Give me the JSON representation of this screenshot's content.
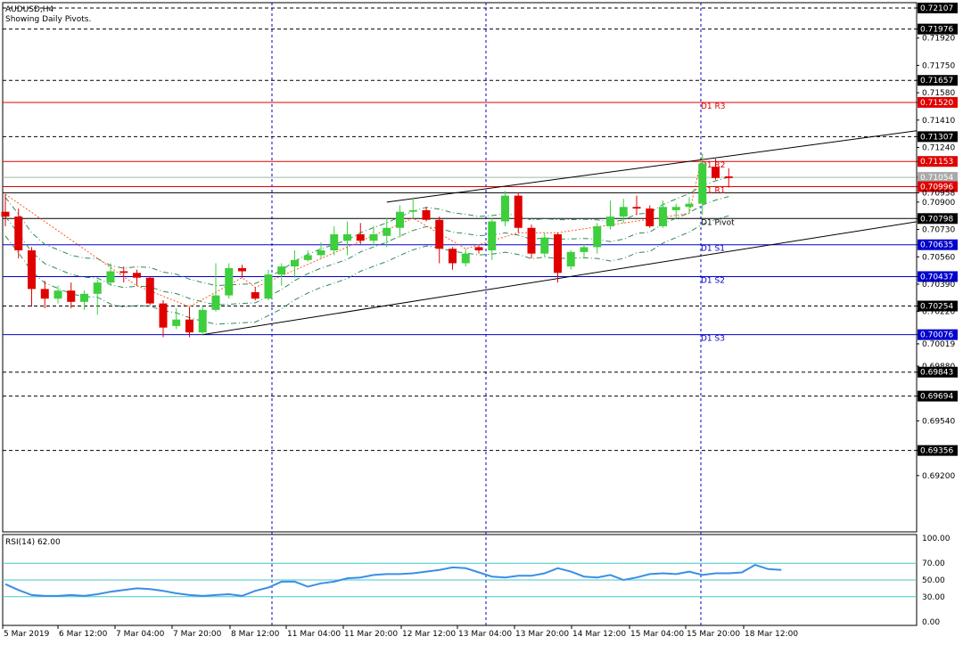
{
  "chart_data": {
    "type": "candlestick",
    "symbol_title": "AUDUSD,H4",
    "subtitle": "Showing Daily Pivots.",
    "price_range": [
      0.6885,
      0.7214
    ],
    "price_ticks": [
      "0.72107",
      "0.71976",
      "0.71920",
      "0.71750",
      "0.71657",
      "0.71580",
      "0.71520",
      "0.71410",
      "0.71307",
      "0.71240",
      "0.71153",
      "0.71054",
      "0.70996",
      "0.70958",
      "0.70900",
      "0.70798",
      "0.70730",
      "0.70635",
      "0.70560",
      "0.70437",
      "0.70390",
      "0.70254",
      "0.70220",
      "0.70076",
      "0.70019",
      "0.69880",
      "0.69843",
      "0.69694",
      "0.69540",
      "0.69356",
      "0.69200"
    ],
    "hlines": [
      {
        "price": 0.72107,
        "style": "dotted",
        "color": "#000000"
      },
      {
        "price": 0.71976,
        "style": "dotted",
        "color": "#000000"
      },
      {
        "price": 0.71657,
        "style": "dotted",
        "color": "#000000"
      },
      {
        "price": 0.71307,
        "style": "dotted",
        "color": "#000000"
      },
      {
        "price": 0.70254,
        "style": "dotted",
        "color": "#000000"
      },
      {
        "price": 0.69843,
        "style": "dotted",
        "color": "#000000"
      },
      {
        "price": 0.69694,
        "style": "dotted",
        "color": "#000000"
      },
      {
        "price": 0.69356,
        "style": "dotted",
        "color": "#000000"
      },
      {
        "price": 0.71054,
        "style": "solid",
        "color": "#9fb8a0"
      },
      {
        "price": 0.70958,
        "style": "solid",
        "color": "#000000"
      }
    ],
    "pivots": [
      {
        "name": "D1 R3",
        "price": 0.7152,
        "color": "#e00000"
      },
      {
        "name": "D1 R2",
        "price": 0.71153,
        "color": "#e00000"
      },
      {
        "name": "D1 R1",
        "price": 0.70996,
        "color": "#e00000"
      },
      {
        "name": "D1 Pivot",
        "price": 0.70798,
        "color": "#000000"
      },
      {
        "name": "D1 S1",
        "price": 0.70635,
        "color": "#0000cc"
      },
      {
        "name": "D1 S2",
        "price": 0.70437,
        "color": "#0000cc"
      },
      {
        "name": "D1 S3",
        "price": 0.70076,
        "color": "#0000cc"
      }
    ],
    "highlighted_labels": [
      {
        "text": "0.71520",
        "color": "#e00000"
      },
      {
        "text": "0.71153",
        "color": "#e00000"
      },
      {
        "text": "0.70996",
        "color": "#e00000"
      },
      {
        "text": "0.70635",
        "color": "#0000cc"
      },
      {
        "text": "0.70437",
        "color": "#0000cc"
      },
      {
        "text": "0.70076",
        "color": "#0000cc"
      },
      {
        "text": "0.71054",
        "color": "#a9a9a9"
      }
    ],
    "black_labels": [
      "0.72107",
      "0.71976",
      "0.71657",
      "0.71307",
      "0.70798",
      "0.70254",
      "0.69843",
      "0.69694",
      "0.69356"
    ],
    "candles": [
      {
        "o": 0.7084,
        "h": 0.7095,
        "c": 0.7081,
        "l": 0.7075
      },
      {
        "o": 0.7081,
        "h": 0.7086,
        "c": 0.706,
        "l": 0.7055
      },
      {
        "o": 0.706,
        "h": 0.7062,
        "c": 0.7036,
        "l": 0.7025
      },
      {
        "o": 0.7036,
        "h": 0.7041,
        "c": 0.703,
        "l": 0.7024
      },
      {
        "o": 0.703,
        "h": 0.7038,
        "c": 0.7035,
        "l": 0.7027
      },
      {
        "o": 0.7035,
        "h": 0.704,
        "c": 0.7028,
        "l": 0.7024
      },
      {
        "o": 0.7028,
        "h": 0.7035,
        "c": 0.7033,
        "l": 0.7023
      },
      {
        "o": 0.7033,
        "h": 0.7042,
        "c": 0.704,
        "l": 0.702
      },
      {
        "o": 0.704,
        "h": 0.7052,
        "c": 0.7047,
        "l": 0.7038
      },
      {
        "o": 0.7047,
        "h": 0.705,
        "c": 0.7046,
        "l": 0.704
      },
      {
        "o": 0.7046,
        "h": 0.7048,
        "c": 0.7043,
        "l": 0.7038
      },
      {
        "o": 0.7043,
        "h": 0.7044,
        "c": 0.7027,
        "l": 0.7026
      },
      {
        "o": 0.7027,
        "h": 0.7029,
        "c": 0.7012,
        "l": 0.7006
      },
      {
        "o": 0.7013,
        "h": 0.7024,
        "c": 0.7017,
        "l": 0.7011
      },
      {
        "o": 0.7017,
        "h": 0.7025,
        "c": 0.7009,
        "l": 0.7006
      },
      {
        "o": 0.7009,
        "h": 0.7025,
        "c": 0.7023,
        "l": 0.7007
      },
      {
        "o": 0.7023,
        "h": 0.7052,
        "c": 0.7032,
        "l": 0.7022
      },
      {
        "o": 0.7032,
        "h": 0.7052,
        "c": 0.7049,
        "l": 0.703
      },
      {
        "o": 0.7049,
        "h": 0.7051,
        "c": 0.7047,
        "l": 0.7043
      },
      {
        "o": 0.7034,
        "h": 0.7037,
        "c": 0.703,
        "l": 0.7029
      },
      {
        "o": 0.703,
        "h": 0.7048,
        "c": 0.7045,
        "l": 0.7029
      },
      {
        "o": 0.7045,
        "h": 0.7052,
        "c": 0.705,
        "l": 0.7038
      },
      {
        "o": 0.705,
        "h": 0.706,
        "c": 0.7054,
        "l": 0.7043
      },
      {
        "o": 0.7054,
        "h": 0.706,
        "c": 0.7057,
        "l": 0.7053
      },
      {
        "o": 0.7057,
        "h": 0.7065,
        "c": 0.706,
        "l": 0.7055
      },
      {
        "o": 0.706,
        "h": 0.7075,
        "c": 0.707,
        "l": 0.7057
      },
      {
        "o": 0.7066,
        "h": 0.7078,
        "c": 0.707,
        "l": 0.7057
      },
      {
        "o": 0.707,
        "h": 0.7077,
        "c": 0.7066,
        "l": 0.7064
      },
      {
        "o": 0.7066,
        "h": 0.7075,
        "c": 0.707,
        "l": 0.7063
      },
      {
        "o": 0.7069,
        "h": 0.708,
        "c": 0.7074,
        "l": 0.7062
      },
      {
        "o": 0.7074,
        "h": 0.7088,
        "c": 0.7084,
        "l": 0.7068
      },
      {
        "o": 0.7084,
        "h": 0.7093,
        "c": 0.7085,
        "l": 0.708
      },
      {
        "o": 0.7085,
        "h": 0.7087,
        "c": 0.7079,
        "l": 0.7078
      },
      {
        "o": 0.7079,
        "h": 0.7081,
        "c": 0.7061,
        "l": 0.7052
      },
      {
        "o": 0.7061,
        "h": 0.7062,
        "c": 0.7052,
        "l": 0.7048
      },
      {
        "o": 0.7052,
        "h": 0.7061,
        "c": 0.7058,
        "l": 0.705
      },
      {
        "o": 0.7062,
        "h": 0.7063,
        "c": 0.706,
        "l": 0.7058
      },
      {
        "o": 0.706,
        "h": 0.708,
        "c": 0.7078,
        "l": 0.7054
      },
      {
        "o": 0.7078,
        "h": 0.7097,
        "c": 0.7094,
        "l": 0.7075
      },
      {
        "o": 0.7094,
        "h": 0.7096,
        "c": 0.7074,
        "l": 0.7071
      },
      {
        "o": 0.7074,
        "h": 0.7076,
        "c": 0.7058,
        "l": 0.7055
      },
      {
        "o": 0.7058,
        "h": 0.7071,
        "c": 0.7068,
        "l": 0.7056
      },
      {
        "o": 0.707,
        "h": 0.7071,
        "c": 0.7046,
        "l": 0.704
      },
      {
        "o": 0.705,
        "h": 0.706,
        "c": 0.7059,
        "l": 0.7048
      },
      {
        "o": 0.7059,
        "h": 0.7064,
        "c": 0.7062,
        "l": 0.7055
      },
      {
        "o": 0.7062,
        "h": 0.7077,
        "c": 0.7075,
        "l": 0.7058
      },
      {
        "o": 0.7075,
        "h": 0.7091,
        "c": 0.7081,
        "l": 0.7073
      },
      {
        "o": 0.7081,
        "h": 0.7092,
        "c": 0.7087,
        "l": 0.7077
      },
      {
        "o": 0.7087,
        "h": 0.7094,
        "c": 0.7086,
        "l": 0.7082
      },
      {
        "o": 0.7086,
        "h": 0.7088,
        "c": 0.7075,
        "l": 0.7074
      },
      {
        "o": 0.7075,
        "h": 0.7091,
        "c": 0.7087,
        "l": 0.7074
      },
      {
        "o": 0.7085,
        "h": 0.7089,
        "c": 0.7087,
        "l": 0.708
      },
      {
        "o": 0.7087,
        "h": 0.7093,
        "c": 0.7089,
        "l": 0.7083
      },
      {
        "o": 0.7089,
        "h": 0.712,
        "c": 0.7114,
        "l": 0.7082
      },
      {
        "o": 0.7112,
        "h": 0.7117,
        "c": 0.7105,
        "l": 0.7104
      },
      {
        "o": 0.7106,
        "h": 0.7111,
        "c": 0.7105,
        "l": 0.7099
      }
    ],
    "x_labels": [
      "5 Mar 2019",
      "6 Mar 12:00",
      "7 Mar 04:00",
      "7 Mar 20:00",
      "8 Mar 12:00",
      "11 Mar 04:00",
      "11 Mar 20:00",
      "12 Mar 12:00",
      "13 Mar 04:00",
      "13 Mar 20:00",
      "14 Mar 12:00",
      "15 Mar 04:00",
      "15 Mar 20:00",
      "18 Mar 12:00"
    ],
    "trendlines": [
      {
        "from": {
          "candle": 15,
          "price": 0.70076
        },
        "to": {
          "candle": "right-edge",
          "price": 0.70778
        }
      },
      {
        "from": {
          "candle": 29,
          "price": 0.709
        },
        "to": {
          "candle": "right-edge",
          "price": 0.71344
        }
      }
    ],
    "rsi": {
      "label": "RSI(14) 62.00",
      "period": 14,
      "value": 62.0,
      "levels": [
        70,
        50,
        30
      ],
      "range": [
        0,
        100
      ],
      "ticks": [
        "100.00",
        "70.00",
        "50.00",
        "30.00",
        "0.00"
      ],
      "values": [
        45,
        38,
        32,
        31,
        31,
        32,
        31,
        33,
        36,
        38,
        40,
        39,
        37,
        34,
        32,
        31,
        32,
        33,
        31,
        37,
        41,
        48,
        48,
        42,
        46,
        48,
        52,
        53,
        56,
        57,
        57,
        58,
        60,
        62,
        65,
        64,
        59,
        54,
        53,
        55,
        55,
        58,
        64,
        60,
        54,
        53,
        56,
        50,
        53,
        57,
        58,
        57,
        60,
        56,
        58,
        58,
        59,
        68,
        63,
        62
      ]
    },
    "colors": {
      "bull": "#3dcf3d",
      "bear": "#e00000",
      "pivot_red": "#e00000",
      "pivot_blue": "#0000cc",
      "envelope": "#2e8b57",
      "zigzag": "#ff5a1f",
      "rsi_line": "#3a8ee6",
      "rsi_level": "#40c8c8",
      "grid": "#000000"
    }
  }
}
